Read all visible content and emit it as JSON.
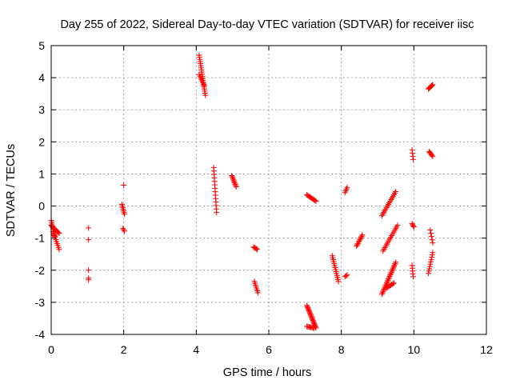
{
  "chart_data": {
    "type": "scatter",
    "title": "Day 255 of 2022, Sidereal Day-to-day VTEC variation (SDTVAR) for receiver iisc",
    "xlabel": "GPS time / hours",
    "ylabel": "SDTVAR / TECUs",
    "xlim": [
      0,
      12
    ],
    "ylim": [
      -4,
      5
    ],
    "xticks": [
      0,
      2,
      4,
      6,
      8,
      10,
      12
    ],
    "yticks": [
      -4,
      -3,
      -2,
      -1,
      0,
      1,
      2,
      3,
      4,
      5
    ],
    "grid": true,
    "marker": "+",
    "color": "#ff0000",
    "series": [
      {
        "name": "SDTVAR",
        "segments": [
          {
            "t0": 0.0,
            "t1": 0.1,
            "v0": -0.45,
            "v1": -0.95,
            "n": 10
          },
          {
            "t0": 0.0,
            "t1": 0.12,
            "v0": -0.6,
            "v1": -0.75,
            "n": 7
          },
          {
            "t0": 0.05,
            "t1": 0.22,
            "v0": -0.8,
            "v1": -1.35,
            "n": 10
          },
          {
            "t0": 0.1,
            "t1": 0.22,
            "v0": -0.72,
            "v1": -0.85,
            "n": 6
          },
          {
            "t0": 1.03,
            "t1": 1.03,
            "v0": -0.68,
            "v1": -0.68,
            "n": 1
          },
          {
            "t0": 1.03,
            "t1": 1.03,
            "v0": -1.05,
            "v1": -1.05,
            "n": 1
          },
          {
            "t0": 1.03,
            "t1": 1.03,
            "v0": -2.0,
            "v1": -2.0,
            "n": 1
          },
          {
            "t0": 1.03,
            "t1": 1.03,
            "v0": -2.25,
            "v1": -2.3,
            "n": 2
          },
          {
            "t0": 2.0,
            "t1": 2.0,
            "v0": 0.65,
            "v1": 0.65,
            "n": 1
          },
          {
            "t0": 1.95,
            "t1": 2.02,
            "v0": 0.05,
            "v1": -0.25,
            "n": 7
          },
          {
            "t0": 1.98,
            "t1": 2.02,
            "v0": -0.7,
            "v1": -0.78,
            "n": 3
          },
          {
            "t0": 4.08,
            "t1": 4.25,
            "v0": 4.7,
            "v1": 3.45,
            "n": 20
          },
          {
            "t0": 4.08,
            "t1": 4.22,
            "v0": 4.1,
            "v1": 3.75,
            "n": 8
          },
          {
            "t0": 4.48,
            "t1": 4.56,
            "v0": 1.2,
            "v1": -0.2,
            "n": 14
          },
          {
            "t0": 4.98,
            "t1": 5.1,
            "v0": 0.95,
            "v1": 0.6,
            "n": 10
          },
          {
            "t0": 5.58,
            "t1": 5.68,
            "v0": -1.28,
            "v1": -1.35,
            "n": 5
          },
          {
            "t0": 5.6,
            "t1": 5.7,
            "v0": -2.35,
            "v1": -2.7,
            "n": 7
          },
          {
            "t0": 7.05,
            "t1": 7.3,
            "v0": 0.35,
            "v1": 0.15,
            "n": 10
          },
          {
            "t0": 7.05,
            "t1": 7.3,
            "v0": -3.1,
            "v1": -3.8,
            "n": 22
          },
          {
            "t0": 7.05,
            "t1": 7.25,
            "v0": -3.75,
            "v1": -3.8,
            "n": 8
          },
          {
            "t0": 7.75,
            "t1": 7.92,
            "v0": -1.55,
            "v1": -2.35,
            "n": 14
          },
          {
            "t0": 8.1,
            "t1": 8.16,
            "v0": 0.42,
            "v1": 0.58,
            "n": 4
          },
          {
            "t0": 8.1,
            "t1": 8.16,
            "v0": -2.2,
            "v1": -2.15,
            "n": 3
          },
          {
            "t0": 8.42,
            "t1": 8.58,
            "v0": -1.25,
            "v1": -0.9,
            "n": 10
          },
          {
            "t0": 9.12,
            "t1": 9.5,
            "v0": -0.3,
            "v1": 0.45,
            "n": 16
          },
          {
            "t0": 9.15,
            "t1": 9.55,
            "v0": -1.4,
            "v1": -0.6,
            "n": 16
          },
          {
            "t0": 9.12,
            "t1": 9.5,
            "v0": -2.75,
            "v1": -1.75,
            "n": 26
          },
          {
            "t0": 9.25,
            "t1": 9.45,
            "v0": -2.55,
            "v1": -2.4,
            "n": 8
          },
          {
            "t0": 9.95,
            "t1": 9.98,
            "v0": 1.75,
            "v1": 1.45,
            "n": 4
          },
          {
            "t0": 9.95,
            "t1": 10.0,
            "v0": -0.55,
            "v1": -0.65,
            "n": 4
          },
          {
            "t0": 9.95,
            "t1": 9.98,
            "v0": -1.85,
            "v1": -2.2,
            "n": 5
          },
          {
            "t0": 10.4,
            "t1": 10.52,
            "v0": 3.65,
            "v1": 3.78,
            "n": 8
          },
          {
            "t0": 10.42,
            "t1": 10.52,
            "v0": 1.7,
            "v1": 1.55,
            "n": 6
          },
          {
            "t0": 10.45,
            "t1": 10.52,
            "v0": -0.75,
            "v1": -1.15,
            "n": 5
          },
          {
            "t0": 10.4,
            "t1": 10.52,
            "v0": -2.1,
            "v1": -1.45,
            "n": 10
          }
        ]
      }
    ]
  }
}
